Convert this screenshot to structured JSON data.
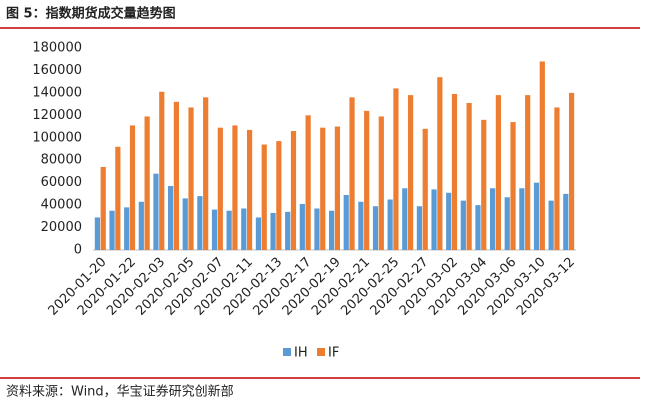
{
  "title": "图 5：指数期货成交量趋势图",
  "source": "资料来源：Wind，华宝证券研究创新部",
  "chart_data": {
    "type": "bar",
    "categories": [
      "2020-01-20",
      null,
      "2020-01-22",
      null,
      "2020-02-03",
      null,
      "2020-02-05",
      null,
      "2020-02-07",
      null,
      "2020-02-11",
      null,
      "2020-02-13",
      null,
      "2020-02-17",
      null,
      "2020-02-19",
      null,
      "2020-02-21",
      null,
      "2020-02-25",
      null,
      "2020-02-27",
      null,
      "2020-03-02",
      null,
      "2020-03-04",
      null,
      "2020-03-06",
      null,
      "2020-03-10",
      null,
      "2020-03-12"
    ],
    "series": [
      {
        "name": "IH",
        "color": "#5b9bd5",
        "values": [
          29000,
          35000,
          38000,
          43000,
          68000,
          57000,
          46000,
          48000,
          36000,
          35000,
          37000,
          29000,
          33000,
          34000,
          41000,
          37000,
          35000,
          49000,
          43000,
          39000,
          45000,
          55000,
          39000,
          54000,
          51000,
          44000,
          40000,
          55000,
          47000,
          55000,
          60000,
          44000,
          50000
        ]
      },
      {
        "name": "IF",
        "color": "#ed7d31",
        "values": [
          74000,
          92000,
          111000,
          119000,
          141000,
          132000,
          127000,
          136000,
          109000,
          111000,
          107000,
          94000,
          97000,
          106000,
          120000,
          109000,
          110000,
          136000,
          124000,
          119000,
          144000,
          138000,
          108000,
          154000,
          139000,
          131000,
          116000,
          138000,
          114000,
          138000,
          168000,
          127000,
          140000
        ]
      }
    ],
    "ylim": [
      0,
      180000
    ],
    "yticks": [
      0,
      20000,
      40000,
      60000,
      80000,
      100000,
      120000,
      140000,
      160000,
      180000
    ],
    "grid": false,
    "legend": "bottom"
  }
}
